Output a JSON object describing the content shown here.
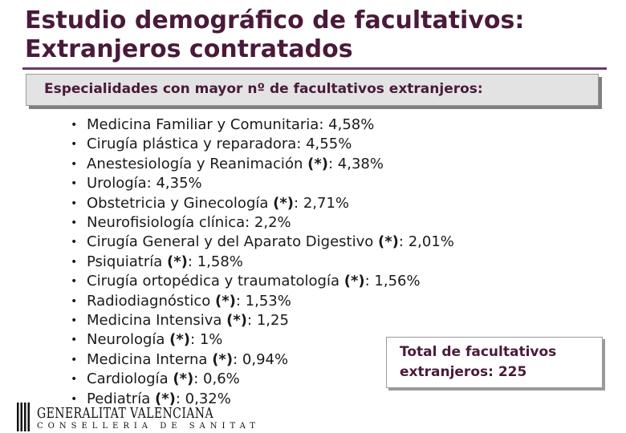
{
  "title": {
    "line1": "Estudio demográfico de facultativos:",
    "line2": "Extranjeros contratados"
  },
  "header": "Especialidades con mayor nº de facultativos extranjeros:",
  "items": [
    {
      "name": "Medicina Familiar y Comunitaria:",
      "marker": "",
      "value": "4,58%"
    },
    {
      "name": "Cirugía plástica y reparadora:",
      "marker": "",
      "value": "4,55%"
    },
    {
      "name": "Anestesiología y Reanimación",
      "marker": "(*)",
      "value": "4,38%"
    },
    {
      "name": "Urología:",
      "marker": "",
      "value": "4,35%"
    },
    {
      "name": "Obstetricia y Ginecología",
      "marker": "(*)",
      "value": "2,71%"
    },
    {
      "name": "Neurofisiología clínica:",
      "marker": "",
      "value": "2,2%"
    },
    {
      "name": "Cirugía General y del Aparato Digestivo",
      "marker": "(*)",
      "value": "2,01%"
    },
    {
      "name": "Psiquiatría",
      "marker": "(*)",
      "value": "1,58%"
    },
    {
      "name": "Cirugía ortopédica y traumatología",
      "marker": "(*)",
      "value": "1,56%"
    },
    {
      "name": "Radiodiagnóstico",
      "marker": "(*)",
      "value": "1,53%"
    },
    {
      "name": "Medicina Intensiva",
      "marker": "(*)",
      "value": "1,25"
    },
    {
      "name": "Neurología",
      "marker": "(*)",
      "value": "1%"
    },
    {
      "name": "Medicina Interna",
      "marker": "(*)",
      "value": "0,94%"
    },
    {
      "name": "Cardiología",
      "marker": "(*)",
      "value": "0,6%"
    },
    {
      "name": "Pediatría",
      "marker": "(*)",
      "value": "0,32%"
    }
  ],
  "total": {
    "line1": "Total de facultativos",
    "line2": "extranjeros: 225"
  },
  "logo": {
    "name": "GENERALITAT VALENCIANA",
    "sub": "CONSELLERIA DE SANITAT"
  }
}
